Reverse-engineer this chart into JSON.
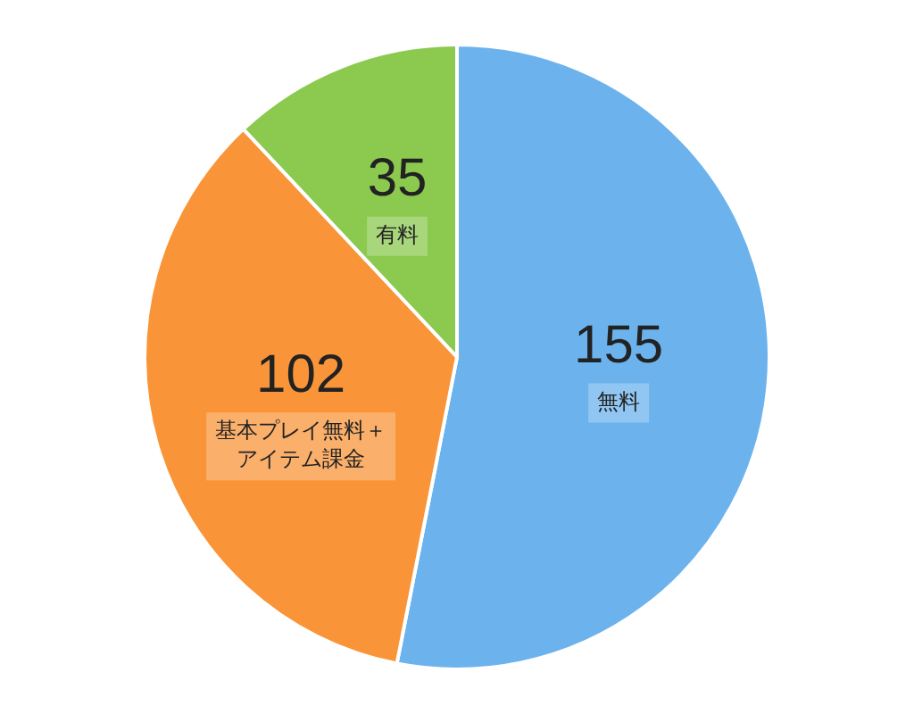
{
  "chart_data": {
    "type": "pie",
    "categories": [
      "無料",
      "基本プレイ無料＋アイテム課金",
      "有料"
    ],
    "values": [
      155,
      102,
      35
    ],
    "colors": [
      "#6cb3ee",
      "#f99538",
      "#8bc94f"
    ],
    "data_labels": true,
    "legend": false
  }
}
